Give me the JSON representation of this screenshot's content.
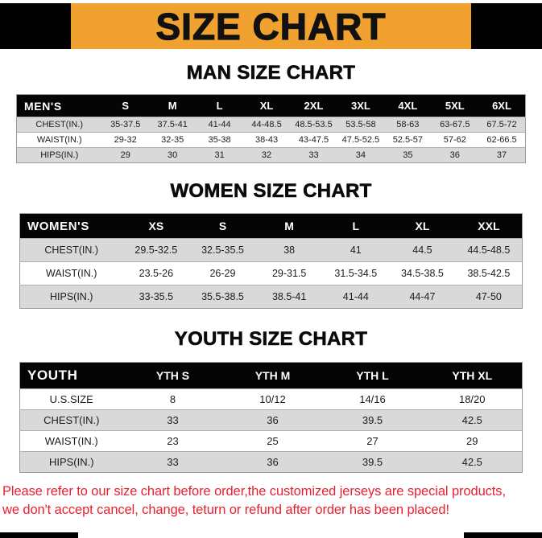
{
  "banner": {
    "title": "SIZE CHART"
  },
  "colors": {
    "banner_bg": "#F0A12F",
    "banner_text": "#111111",
    "table_header_bg": "#050505",
    "table_header_text": "#FFFFFF",
    "row_shade": "#D9D9D9",
    "disclaimer_red": "#E82130"
  },
  "chart_data": [
    {
      "type": "table",
      "id": "men",
      "title": "MAN SIZE CHART",
      "columns": [
        "MEN'S",
        "S",
        "M",
        "L",
        "XL",
        "2XL",
        "3XL",
        "4XL",
        "5XL",
        "6XL"
      ],
      "rows": [
        [
          "CHEST(IN.)",
          "35-37.5",
          "37.5-41",
          "41-44",
          "44-48.5",
          "48.5-53.5",
          "53.5-58",
          "58-63",
          "63-67.5",
          "67.5-72"
        ],
        [
          "WAIST(IN.)",
          "29-32",
          "32-35",
          "35-38",
          "38-43",
          "43-47.5",
          "47.5-52.5",
          "52.5-57",
          "57-62",
          "62-66.5"
        ],
        [
          "HIPS(IN.)",
          "29",
          "30",
          "31",
          "32",
          "33",
          "34",
          "35",
          "36",
          "37"
        ]
      ],
      "shaded_rows": [
        0,
        2
      ]
    },
    {
      "type": "table",
      "id": "women",
      "title": "WOMEN SIZE CHART",
      "columns": [
        "WOMEN'S",
        "XS",
        "S",
        "M",
        "L",
        "XL",
        "XXL"
      ],
      "rows": [
        [
          "CHEST(IN.)",
          "29.5-32.5",
          "32.5-35.5",
          "38",
          "41",
          "44.5",
          "44.5-48.5"
        ],
        [
          "WAIST(IN.)",
          "23.5-26",
          "26-29",
          "29-31.5",
          "31.5-34.5",
          "34.5-38.5",
          "38.5-42.5"
        ],
        [
          "HIPS(IN.)",
          "33-35.5",
          "35.5-38.5",
          "38.5-41",
          "41-44",
          "44-47",
          "47-50"
        ]
      ],
      "shaded_rows": [
        0,
        2
      ]
    },
    {
      "type": "table",
      "id": "youth",
      "title": "YOUTH SIZE CHART",
      "columns": [
        "YOUTH",
        "YTH S",
        "YTH M",
        "YTH L",
        "YTH XL"
      ],
      "rows": [
        [
          "U.S.SIZE",
          "8",
          "10/12",
          "14/16",
          "18/20"
        ],
        [
          "CHEST(IN.)",
          "33",
          "36",
          "39.5",
          "42.5"
        ],
        [
          "WAIST(IN.)",
          "23",
          "25",
          "27",
          "29"
        ],
        [
          "HIPS(IN.)",
          "33",
          "36",
          "39.5",
          "42.5"
        ]
      ],
      "shaded_rows": [
        1,
        3
      ]
    }
  ],
  "disclaimer": {
    "line1": "Please refer to our size chart before order,the customized jerseys are special products,",
    "line2": "we don't accept cancel, change, teturn or refund after order has been placed!"
  }
}
